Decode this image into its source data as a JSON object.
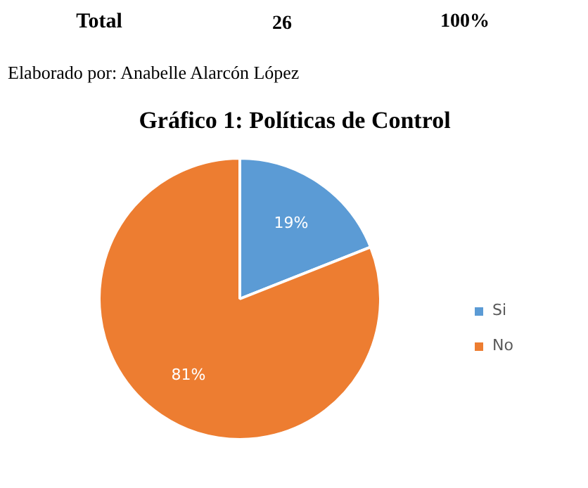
{
  "chart_data": {
    "type": "pie",
    "title": "Gráfico 1: Políticas de Control",
    "categories": [
      "Si",
      "No"
    ],
    "values": [
      19,
      81
    ],
    "colors": [
      "#5b9bd5",
      "#ed7d31"
    ],
    "value_labels": [
      "19%",
      "81%"
    ],
    "legend": "right",
    "annotations": [
      "Total",
      "26",
      "100%",
      "Elaborado por: Anabelle Alarcón López"
    ]
  }
}
